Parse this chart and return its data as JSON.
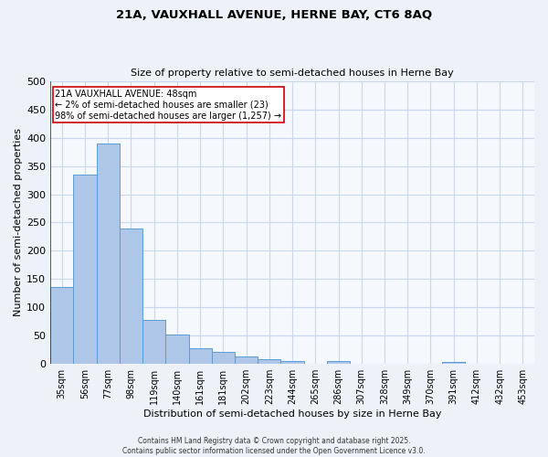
{
  "title1": "21A, VAUXHALL AVENUE, HERNE BAY, CT6 8AQ",
  "title2": "Size of property relative to semi-detached houses in Herne Bay",
  "xlabel": "Distribution of semi-detached houses by size in Herne Bay",
  "ylabel": "Number of semi-detached properties",
  "categories": [
    "35sqm",
    "56sqm",
    "77sqm",
    "98sqm",
    "119sqm",
    "140sqm",
    "161sqm",
    "181sqm",
    "202sqm",
    "223sqm",
    "244sqm",
    "265sqm",
    "286sqm",
    "307sqm",
    "328sqm",
    "349sqm",
    "370sqm",
    "391sqm",
    "412sqm",
    "432sqm",
    "453sqm"
  ],
  "values": [
    135,
    335,
    390,
    240,
    78,
    52,
    27,
    20,
    12,
    7,
    5,
    0,
    4,
    0,
    0,
    0,
    0,
    3,
    0,
    0,
    0
  ],
  "bar_color": "#aec6e8",
  "bar_edge_color": "#5b9bd5",
  "vline_color": "#cc0000",
  "annotation_title": "21A VAUXHALL AVENUE: 48sqm",
  "annotation_line1": "← 2% of semi-detached houses are smaller (23)",
  "annotation_line2": "98% of semi-detached houses are larger (1,257) →",
  "annotation_box_color": "#ffffff",
  "annotation_box_edge_color": "#cc0000",
  "footer1": "Contains HM Land Registry data © Crown copyright and database right 2025.",
  "footer2": "Contains public sector information licensed under the Open Government Licence v3.0.",
  "bg_color": "#eef2f8",
  "plot_bg_color": "#f5f8fd",
  "grid_color": "#c8d8ee",
  "ylim": [
    0,
    500
  ],
  "yticks": [
    0,
    50,
    100,
    150,
    200,
    250,
    300,
    350,
    400,
    450,
    500
  ]
}
